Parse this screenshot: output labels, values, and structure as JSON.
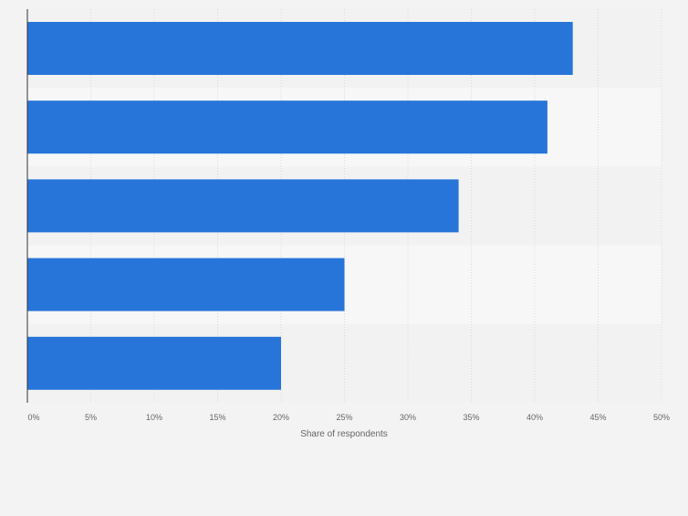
{
  "colors": {
    "background": "#f3f3f3",
    "band_light": "#f7f7f7",
    "band_dark": "#f2f2f2",
    "bar": "#2775d9",
    "grid": "#d9d9d9",
    "axis": "#333333",
    "tick_text": "#666666",
    "label_text": "#666666"
  },
  "chart_data": {
    "type": "bar",
    "orientation": "horizontal",
    "categories": [
      "",
      "",
      "",
      "",
      ""
    ],
    "values": [
      43,
      41,
      34,
      25,
      20
    ],
    "xlabel": "Share of respondents",
    "xlim": [
      0,
      50
    ],
    "xticks": [
      "0%",
      "5%",
      "10%",
      "15%",
      "20%",
      "25%",
      "30%",
      "35%",
      "40%",
      "45%",
      "50%"
    ],
    "grid": true,
    "legend": "none"
  }
}
